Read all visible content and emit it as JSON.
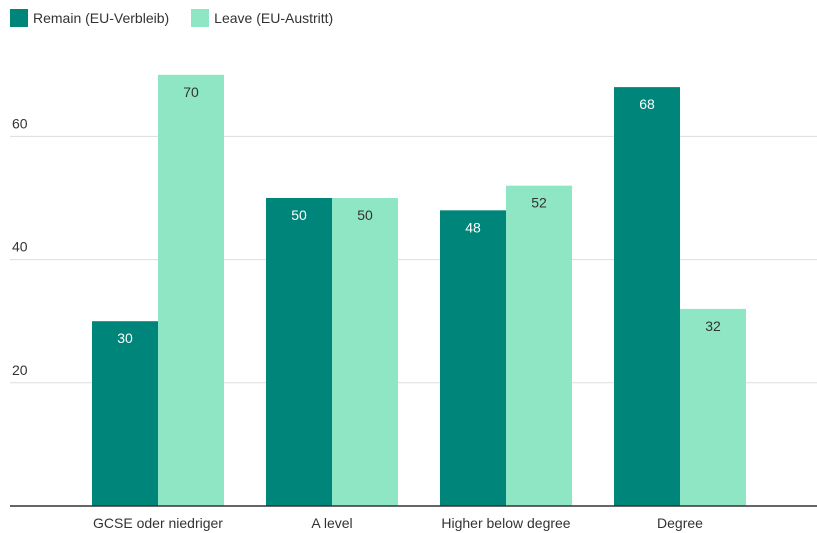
{
  "colors": {
    "remain": "#00857a",
    "leave": "#8fe6c5",
    "grid": "#dddddd",
    "axis": "#333333",
    "text": "#333333"
  },
  "legend": [
    {
      "label": "Remain (EU-Verbleib)",
      "color_key": "remain"
    },
    {
      "label": "Leave (EU-Austritt)",
      "color_key": "leave"
    }
  ],
  "chart_data": {
    "type": "bar",
    "categories": [
      "GCSE oder niedriger",
      "A level",
      "Higher below degree",
      "Degree"
    ],
    "series": [
      {
        "name": "Remain (EU-Verbleib)",
        "values": [
          30,
          50,
          48,
          68
        ]
      },
      {
        "name": "Leave (EU-Austritt)",
        "values": [
          70,
          50,
          52,
          32
        ]
      }
    ],
    "yticks": [
      20,
      40,
      60
    ],
    "ylim": [
      0,
      70
    ],
    "grid": true,
    "legend_position": "top-left",
    "title": "",
    "xlabel": "",
    "ylabel": ""
  }
}
